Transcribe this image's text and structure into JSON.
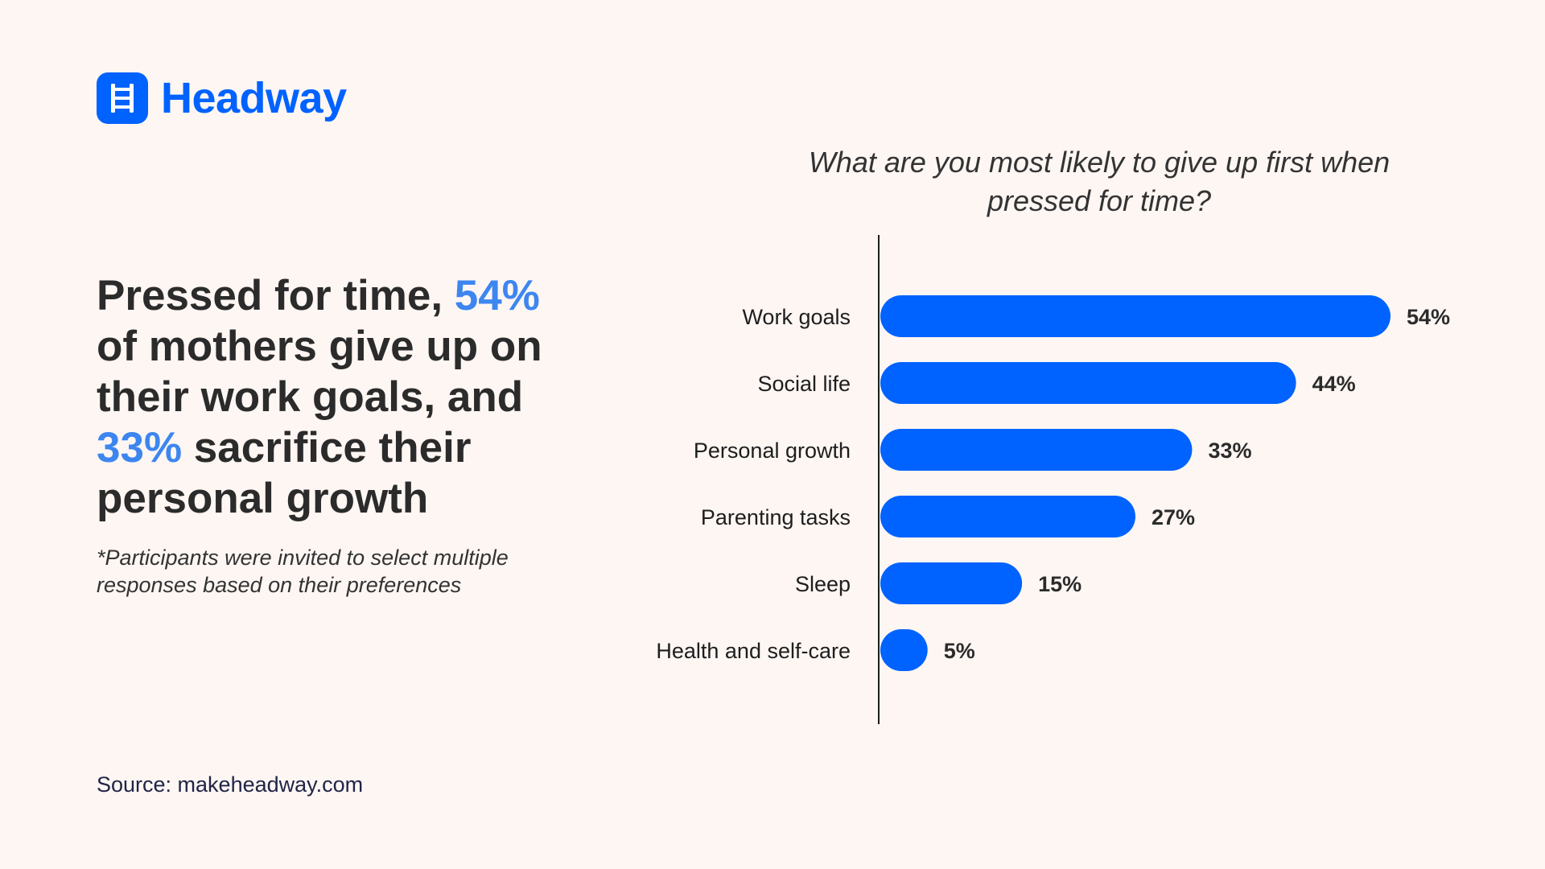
{
  "brand": {
    "name": "Headway",
    "icon": "ladder-icon",
    "color": "#0062ff"
  },
  "headline": {
    "part1": "Pressed for time, ",
    "stat1": "54%",
    "part2": " of mothers give up on their work goals, and ",
    "stat2": "33%",
    "part3": " sacrifice their personal growth",
    "highlight_color": "#3d86f0"
  },
  "footnote": "*Participants were invited to select multiple responses based on their preferences",
  "source": "Source: makeheadway.com",
  "chart_data": {
    "type": "bar",
    "orientation": "horizontal",
    "title": "What are you most likely to give up first when pressed for time?",
    "categories": [
      "Work goals",
      "Social life",
      "Personal growth",
      "Parenting tasks",
      "Sleep",
      "Health and self-care"
    ],
    "values": [
      54,
      44,
      33,
      27,
      15,
      5
    ],
    "value_labels": [
      "54%",
      "44%",
      "33%",
      "27%",
      "15%",
      "5%"
    ],
    "unit": "%",
    "bar_color": "#0062ff",
    "xlim": [
      0,
      54
    ],
    "grid": false,
    "legend": "none"
  }
}
